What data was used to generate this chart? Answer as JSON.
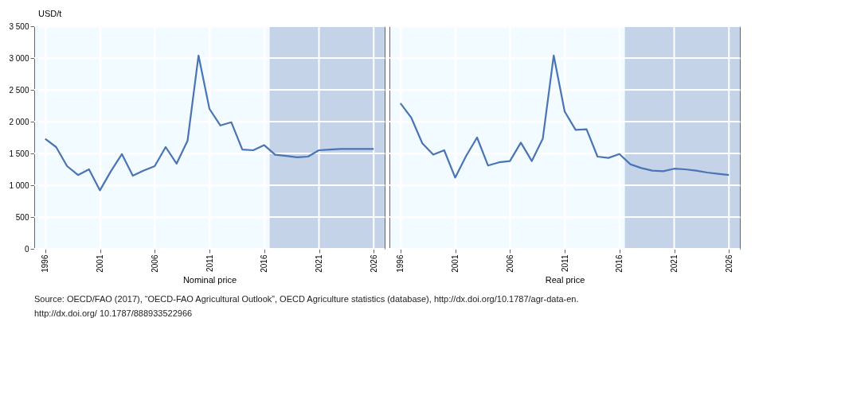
{
  "chart_data": [
    {
      "type": "line",
      "xlabel": "Nominal price",
      "ylabel": "USD/t",
      "x": [
        1996,
        1997,
        1998,
        1999,
        2000,
        2001,
        2002,
        2003,
        2004,
        2005,
        2006,
        2007,
        2008,
        2009,
        2010,
        2011,
        2012,
        2013,
        2014,
        2015,
        2016,
        2017,
        2018,
        2019,
        2020,
        2021,
        2022,
        2023,
        2024,
        2025,
        2026
      ],
      "series": [
        {
          "color": "#4a74b4",
          "values": [
            1730,
            1600,
            1300,
            1160,
            1250,
            920,
            1220,
            1490,
            1150,
            1230,
            1300,
            1600,
            1340,
            1700,
            3040,
            2200,
            1940,
            1990,
            1560,
            1550,
            1630,
            1480,
            1460,
            1440,
            1450,
            1550,
            1560,
            1570,
            1570,
            1570,
            1570
          ]
        }
      ],
      "xlim": [
        1995,
        2027
      ],
      "xticks": [
        1996,
        2001,
        2006,
        2011,
        2016,
        2021,
        2026
      ],
      "ylim": [
        0,
        3500
      ],
      "yticks": [
        {
          "value": 0,
          "label": "0"
        },
        {
          "value": 500,
          "label": "500"
        },
        {
          "value": 1000,
          "label": "1 000"
        },
        {
          "value": 1500,
          "label": "1 500"
        },
        {
          "value": 2000,
          "label": "2 000"
        },
        {
          "value": 2500,
          "label": "2 500"
        },
        {
          "value": 3000,
          "label": "3 000"
        },
        {
          "value": 3500,
          "label": "3 500"
        }
      ],
      "bands": [
        {
          "axis": "x",
          "from": 2016.5,
          "to": 2027,
          "color": "#c5d3e8"
        }
      ],
      "grid": true,
      "marker": "none",
      "line_style": "solid",
      "annotations": [
        "Source: OECD/FAO (2017), “OECD-FAO Agricultural Outlook”, OECD Agriculture statistics (database), http://dx.doi.org/10.1787/agr-data-en.",
        "http://dx.doi.org/ 10.1787/888933522966"
      ]
    },
    {
      "type": "line",
      "xlabel": "Real price",
      "x": [
        1996,
        1997,
        1998,
        1999,
        2000,
        2001,
        2002,
        2003,
        2004,
        2005,
        2006,
        2007,
        2008,
        2009,
        2010,
        2011,
        2012,
        2013,
        2014,
        2015,
        2016,
        2017,
        2018,
        2019,
        2020,
        2021,
        2022,
        2023,
        2024,
        2025,
        2026
      ],
      "series": [
        {
          "color": "#4a74b4",
          "values": [
            2290,
            2060,
            1660,
            1480,
            1550,
            1120,
            1460,
            1750,
            1310,
            1360,
            1380,
            1670,
            1380,
            1730,
            3040,
            2160,
            1870,
            1880,
            1450,
            1430,
            1490,
            1330,
            1270,
            1230,
            1220,
            1260,
            1250,
            1230,
            1200,
            1180,
            1160
          ]
        }
      ],
      "xlim": [
        1995,
        2027
      ],
      "xticks": [
        1996,
        2001,
        2006,
        2011,
        2016,
        2021,
        2026
      ],
      "ylim": [
        0,
        3500
      ],
      "yticks": [
        0,
        500,
        1000,
        1500,
        2000,
        2500,
        3000,
        3500
      ],
      "bands": [
        {
          "axis": "x",
          "from": 2016.5,
          "to": 2027,
          "color": "#c5d3e8"
        }
      ],
      "grid": true,
      "marker": "none",
      "line_style": "solid",
      "tick_labels": "x"
    }
  ]
}
